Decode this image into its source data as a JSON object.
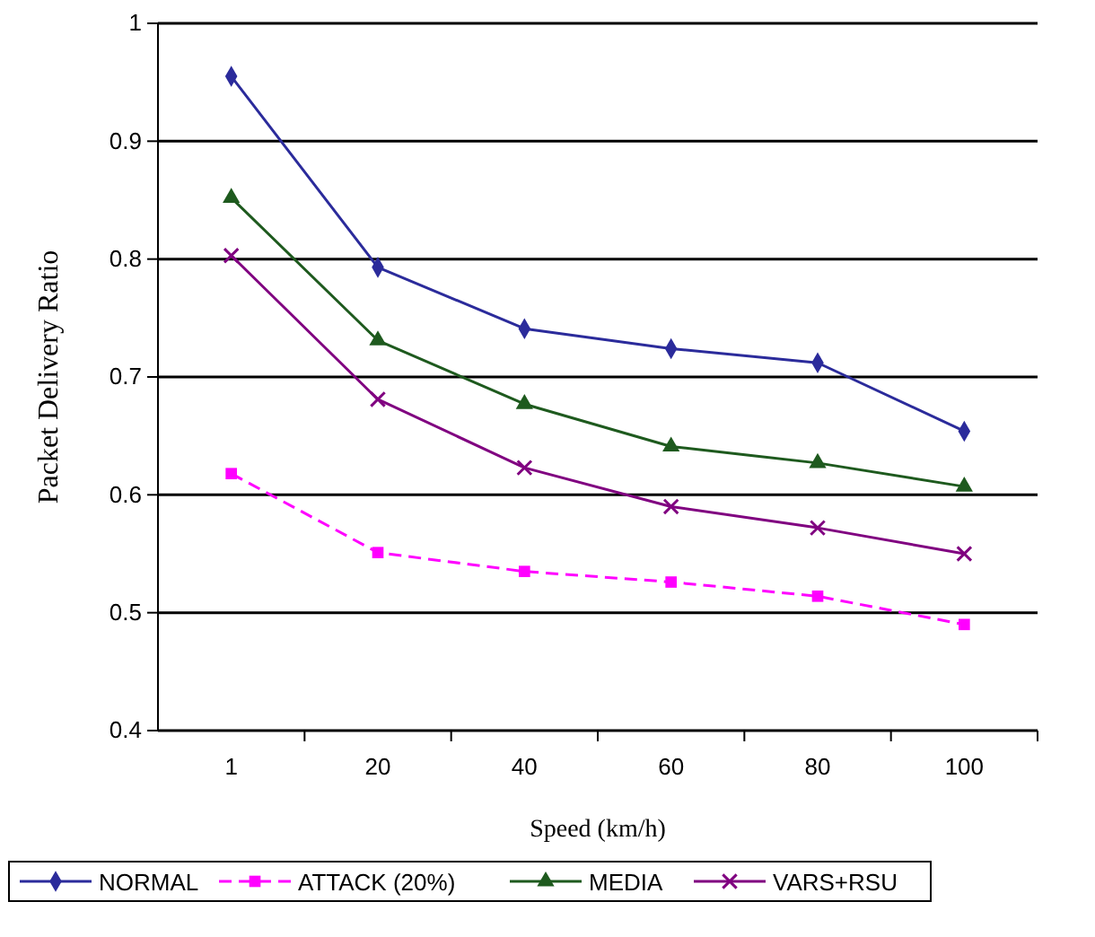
{
  "chart_data": {
    "type": "line",
    "xlabel": "Speed (km/h)",
    "ylabel": "Packet Delivery Ratio",
    "categories": [
      "1",
      "20",
      "40",
      "60",
      "80",
      "100"
    ],
    "series": [
      {
        "name": "NORMAL",
        "color": "#2b2b9b",
        "marker": "diamond",
        "line_style": "solid",
        "values": [
          0.955,
          0.793,
          0.741,
          0.724,
          0.712,
          0.654
        ]
      },
      {
        "name": "ATTACK (20%)",
        "color": "#ff00ff",
        "marker": "square",
        "line_style": "dashed",
        "values": [
          0.618,
          0.551,
          0.535,
          0.526,
          0.514,
          0.49
        ]
      },
      {
        "name": "MEDIA",
        "color": "#1e5a1e",
        "marker": "triangle",
        "line_style": "solid",
        "values": [
          0.852,
          0.731,
          0.677,
          0.641,
          0.627,
          0.607
        ]
      },
      {
        "name": "VARS+RSU",
        "color": "#800080",
        "marker": "cross",
        "line_style": "solid",
        "values": [
          0.803,
          0.681,
          0.623,
          0.59,
          0.572,
          0.55
        ]
      }
    ],
    "ylim": [
      0.4,
      1
    ],
    "yticks": [
      0.4,
      0.5,
      0.6,
      0.7,
      0.8,
      0.9,
      1
    ],
    "grid": "y",
    "legend": "bottom"
  }
}
